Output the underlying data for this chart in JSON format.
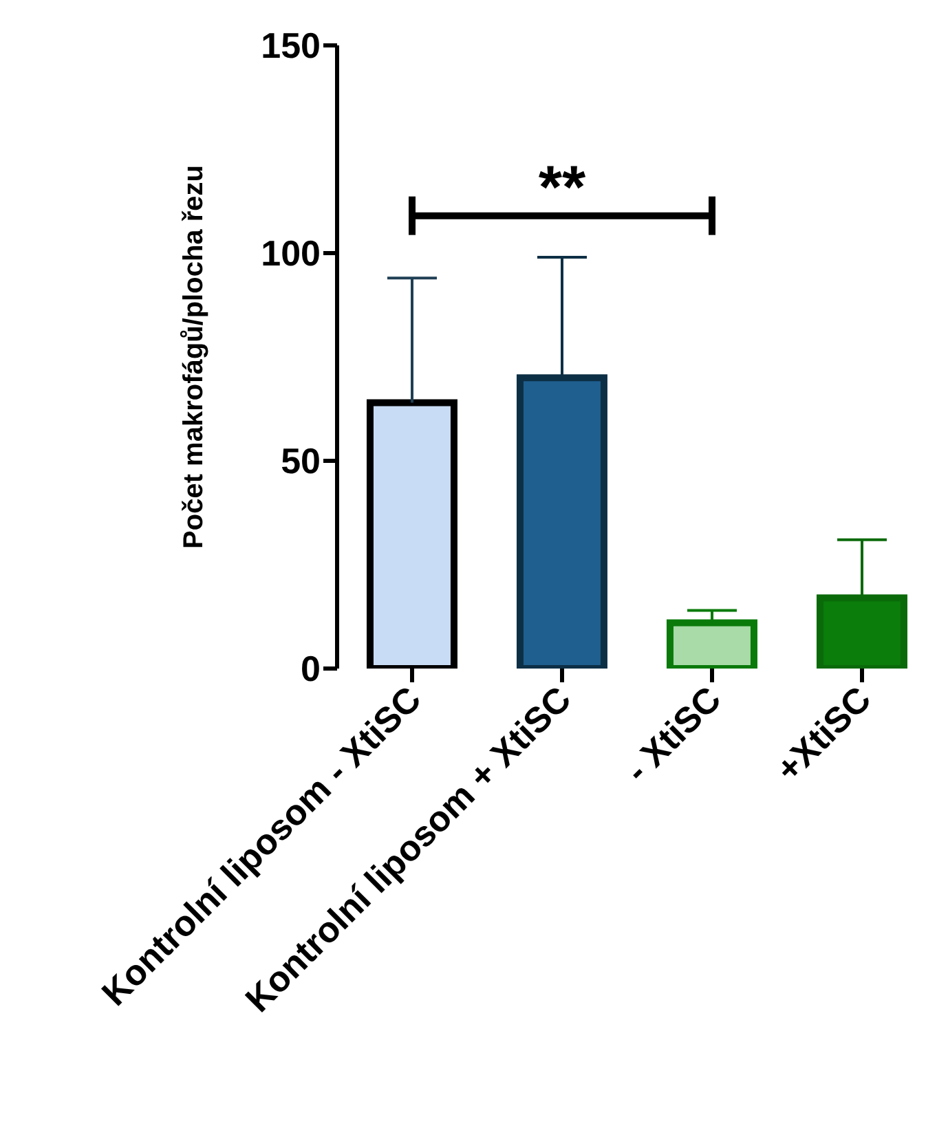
{
  "chart_data": {
    "type": "bar",
    "ylabel": "Počet makrofágů/plocha řezu",
    "categories": [
      "Kontrolní liposom - XtiSC",
      "Kontrolní liposom + XtiSC",
      "- XtiSC",
      "+XtiSC"
    ],
    "values": [
      64,
      70,
      11,
      17
    ],
    "errors": [
      [
        64,
        94
      ],
      [
        70,
        99
      ],
      [
        11,
        14
      ],
      [
        17,
        31
      ]
    ],
    "colors": [
      "#c9dcf5",
      "#1f5f8f",
      "#a8dba8",
      "#0a7d0a"
    ],
    "ylim": [
      0,
      150
    ],
    "yticks": [
      0,
      50,
      100,
      150
    ],
    "annotations": [
      "**"
    ]
  }
}
